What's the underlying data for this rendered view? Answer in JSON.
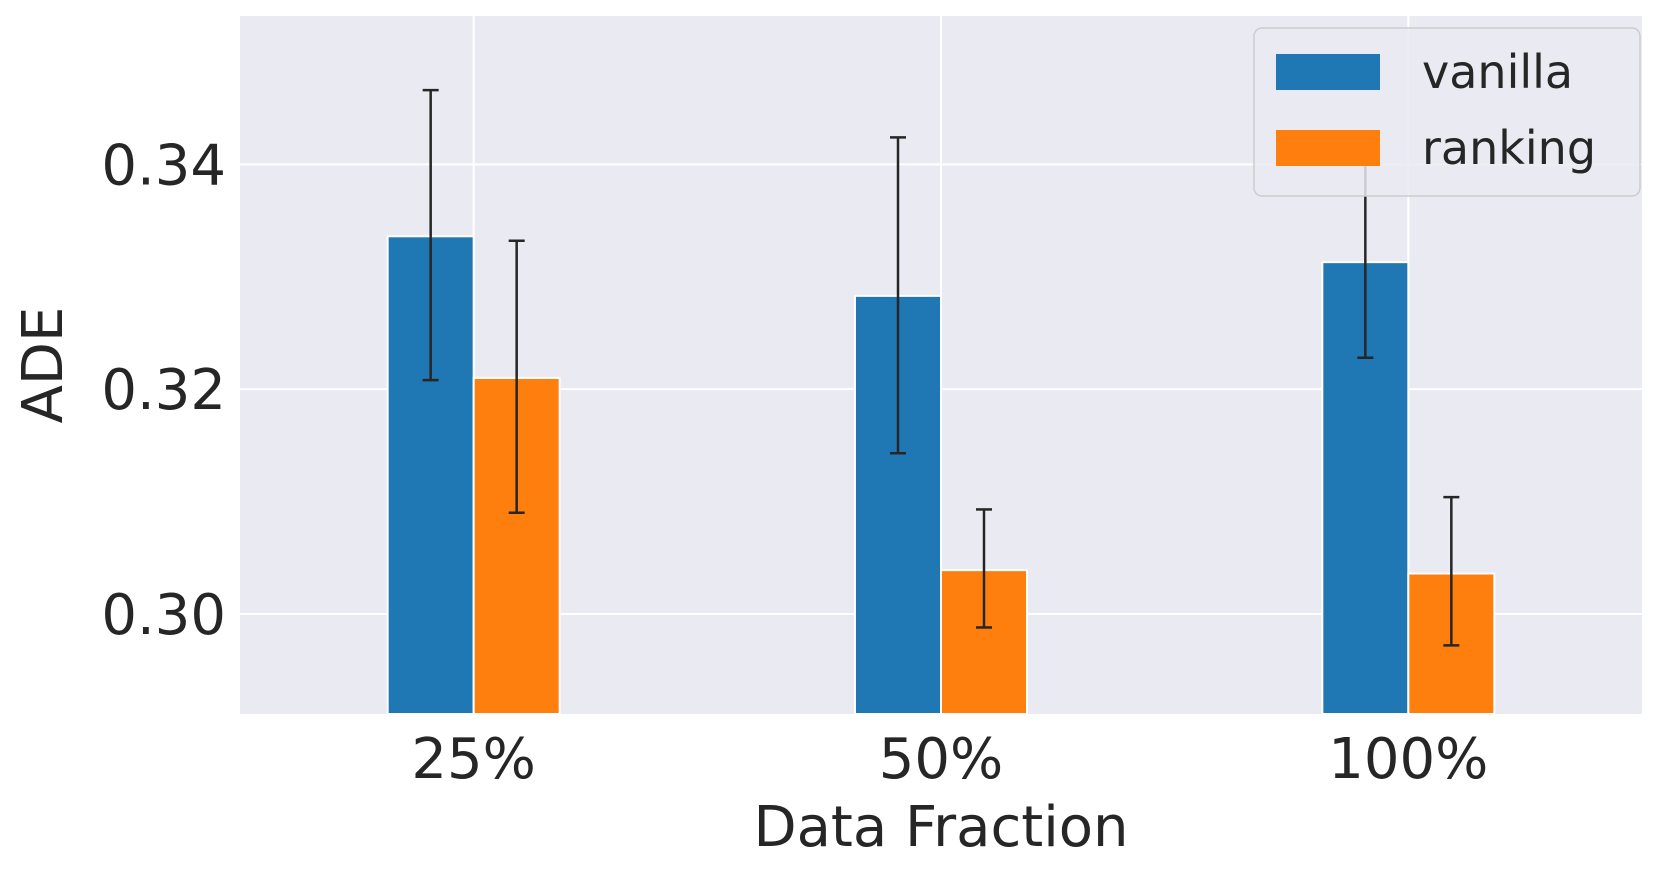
{
  "chart_data": {
    "type": "bar",
    "categories": [
      "25%",
      "50%",
      "100%"
    ],
    "series": [
      {
        "name": "vanilla",
        "color": "#1f77b4",
        "values": [
          0.3336,
          0.3283,
          0.3313
        ],
        "error_low": [
          0.3208,
          0.3143,
          0.3228
        ],
        "error_high": [
          0.3466,
          0.3424,
          0.34
        ]
      },
      {
        "name": "ranking",
        "color": "#ff7f0e",
        "values": [
          0.321,
          0.3039,
          0.3036
        ],
        "error_low": [
          0.309,
          0.2988,
          0.2972
        ],
        "error_high": [
          0.3332,
          0.3093,
          0.3104
        ]
      }
    ],
    "xlabel": "Data Fraction",
    "ylabel": "ADE",
    "yticks": [
      {
        "value": 0.3,
        "label": "0.30"
      },
      {
        "value": 0.32,
        "label": "0.32"
      },
      {
        "value": 0.34,
        "label": "0.34"
      }
    ],
    "ylim": [
      0.2911,
      0.3532
    ],
    "grid": true,
    "legend_position": "top-right",
    "background_color": "#eaeaf2"
  }
}
